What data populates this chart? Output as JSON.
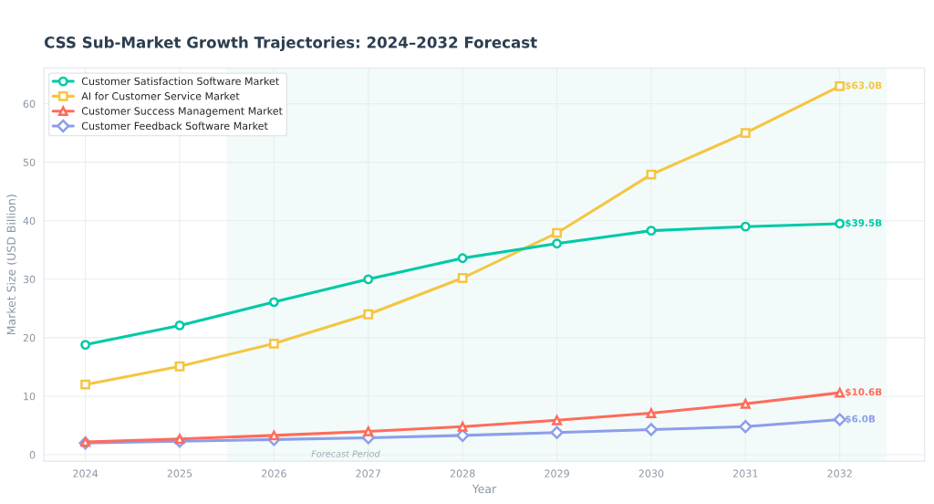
{
  "chart_data": {
    "type": "line",
    "title": "CSS Sub-Market Growth Trajectories: 2024–2032 Forecast",
    "xlabel": "Year",
    "ylabel": "Market Size (USD Billion)",
    "x": [
      2024,
      2025,
      2026,
      2027,
      2028,
      2029,
      2030,
      2031,
      2032
    ],
    "series": [
      {
        "name": "Customer Satisfaction Software Market",
        "color": "#00c9a7",
        "marker": "circle",
        "values": [
          18.8,
          22.1,
          26.1,
          30.0,
          33.6,
          36.1,
          38.3,
          39.0,
          39.5
        ],
        "value_labels": [
          null,
          null,
          null,
          null,
          null,
          null,
          null,
          null,
          "$39.5B"
        ]
      },
      {
        "name": "AI for Customer Service Market",
        "color": "#f5c542",
        "marker": "square",
        "values": [
          12.0,
          15.1,
          19.0,
          24.0,
          30.2,
          37.9,
          47.9,
          55.0,
          63.0
        ],
        "value_labels": [
          null,
          null,
          null,
          null,
          null,
          null,
          null,
          null,
          "$63.0B"
        ]
      },
      {
        "name": "Customer Success Management Market",
        "color": "#ff6b5b",
        "marker": "triangle",
        "values": [
          2.2,
          2.7,
          3.3,
          4.0,
          4.8,
          5.9,
          7.1,
          8.7,
          10.6
        ],
        "value_labels": [
          null,
          null,
          null,
          null,
          null,
          null,
          null,
          null,
          "$10.6B"
        ]
      },
      {
        "name": "Customer Feedback Software Market",
        "color": "#8c9eeb",
        "marker": "diamond",
        "values": [
          2.0,
          2.3,
          2.6,
          2.9,
          3.3,
          3.8,
          4.3,
          4.8,
          6.0
        ],
        "value_labels": [
          null,
          null,
          null,
          null,
          null,
          null,
          null,
          null,
          "$6.0B"
        ]
      }
    ],
    "xlim": [
      2023.56,
      2032.9
    ],
    "xticks": [
      2024,
      2025,
      2026,
      2027,
      2028,
      2029,
      2030,
      2031,
      2032
    ],
    "ylim": [
      -1.1,
      66.1
    ],
    "yticks": [
      0,
      10,
      20,
      30,
      40,
      50,
      60
    ],
    "bands": [
      {
        "axis": "x",
        "from": 2025.5,
        "to": 2032.5,
        "label": "Forecast Period",
        "color": "#e6f7f4"
      }
    ],
    "grid": true,
    "legend": "top left",
    "line_style": "solid"
  }
}
